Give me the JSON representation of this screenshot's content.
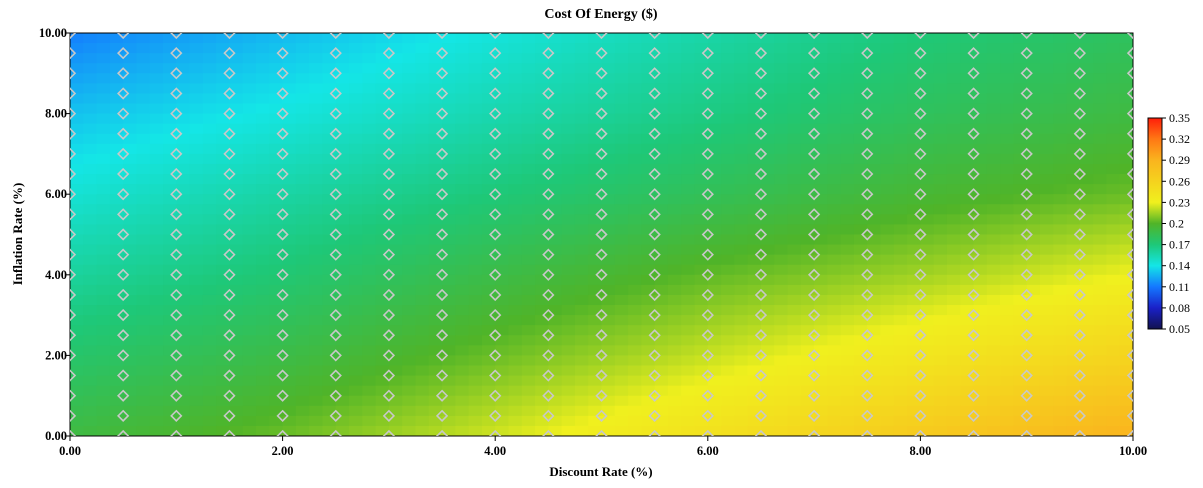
{
  "chart_data": {
    "type": "heatmap",
    "title": "Cost Of Energy ($)",
    "xlabel": "Discount Rate (%)",
    "ylabel": "Inflation Rate (%)",
    "xlim": [
      0,
      10
    ],
    "ylim": [
      0,
      10
    ],
    "x_ticks": [
      "0.00",
      "2.00",
      "4.00",
      "6.00",
      "8.00",
      "10.00"
    ],
    "y_ticks": [
      "0.00",
      "2.00",
      "4.00",
      "6.00",
      "8.00",
      "10.00"
    ],
    "sample_x": [
      0,
      0.5,
      1,
      1.5,
      2,
      2.5,
      3,
      3.5,
      4,
      4.5,
      5,
      5.5,
      6,
      6.5,
      7,
      7.5,
      8,
      8.5,
      9,
      9.5,
      10
    ],
    "sample_y": [
      0,
      0.5,
      1,
      1.5,
      2,
      2.5,
      3,
      3.5,
      4,
      4.5,
      5,
      5.5,
      6,
      6.5,
      7,
      7.5,
      8,
      8.5,
      9,
      9.5,
      10
    ],
    "grid_x": [
      0,
      2,
      4,
      6,
      8,
      10
    ],
    "grid_y": [
      0,
      2,
      4,
      6,
      8,
      10
    ],
    "values": [
      [
        0.19,
        0.205,
        0.224,
        0.245,
        0.268,
        0.29
      ],
      [
        0.175,
        0.188,
        0.205,
        0.222,
        0.24,
        0.258
      ],
      [
        0.16,
        0.172,
        0.188,
        0.203,
        0.215,
        0.23
      ],
      [
        0.145,
        0.158,
        0.17,
        0.182,
        0.195,
        0.205
      ],
      [
        0.13,
        0.142,
        0.155,
        0.167,
        0.18,
        0.19
      ],
      [
        0.112,
        0.128,
        0.143,
        0.157,
        0.17,
        0.18
      ]
    ],
    "colorbar": {
      "ticks": [
        "0.35",
        "0.32",
        "0.29",
        "0.26",
        "0.23",
        "0.2",
        "0.17",
        "0.14",
        "0.11",
        "0.08",
        "0.05"
      ],
      "min": 0.05,
      "max": 0.35,
      "stops": [
        {
          "v": 0.05,
          "color": "#121250"
        },
        {
          "v": 0.08,
          "color": "#1a20c8"
        },
        {
          "v": 0.11,
          "color": "#1478ff"
        },
        {
          "v": 0.14,
          "color": "#14e6e6"
        },
        {
          "v": 0.17,
          "color": "#1ec878"
        },
        {
          "v": 0.2,
          "color": "#50b428"
        },
        {
          "v": 0.23,
          "color": "#f0f01e"
        },
        {
          "v": 0.26,
          "color": "#f5d21e"
        },
        {
          "v": 0.29,
          "color": "#fab41e"
        },
        {
          "v": 0.32,
          "color": "#ff7814"
        },
        {
          "v": 0.35,
          "color": "#ff1e0a"
        }
      ]
    },
    "marker_color": "#c8c8c8"
  }
}
